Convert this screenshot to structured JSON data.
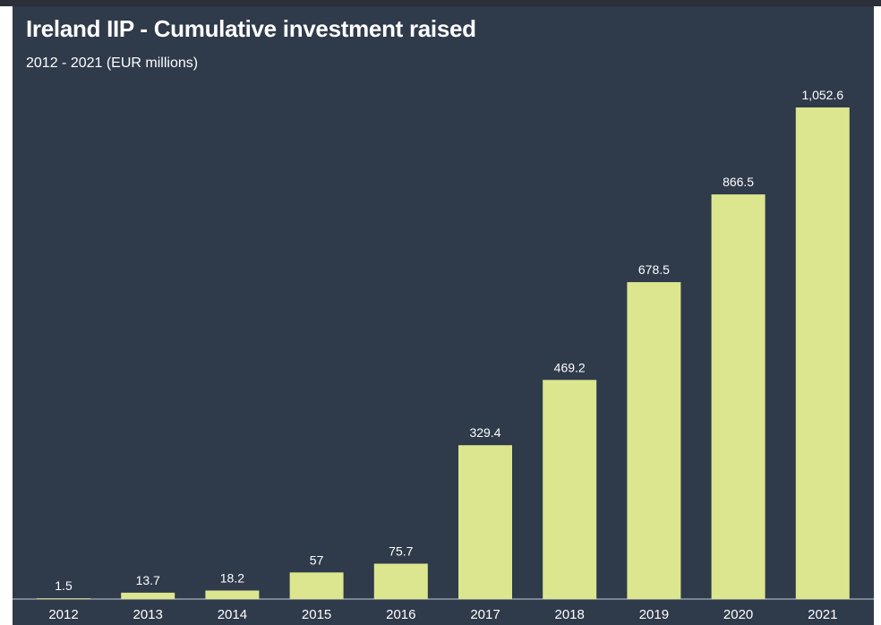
{
  "chart_title": "Ireland IIP - Cumulative investment raised",
  "chart_subtitle": "2012 - 2021 (EUR millions)",
  "colors": {
    "background": "#2f3a4b",
    "bar": "#dce68e",
    "text": "#ffffff"
  },
  "chart_data": {
    "type": "bar",
    "title": "Ireland IIP - Cumulative investment raised",
    "subtitle": "2012 - 2021 (EUR millions)",
    "categories": [
      "2012",
      "2013",
      "2014",
      "2015",
      "2016",
      "2017",
      "2018",
      "2019",
      "2020",
      "2021"
    ],
    "values": [
      1.5,
      13.7,
      18.2,
      57,
      75.7,
      329.4,
      469.2,
      678.5,
      866.5,
      1052.6
    ],
    "value_labels": [
      "1.5",
      "13.7",
      "18.2",
      "57",
      "75.7",
      "329.4",
      "469.2",
      "678.5",
      "866.5",
      "1,052.6"
    ],
    "xlabel": "",
    "ylabel": "",
    "ylim": [
      0,
      1052.6
    ],
    "grid": false,
    "legend": "none"
  }
}
